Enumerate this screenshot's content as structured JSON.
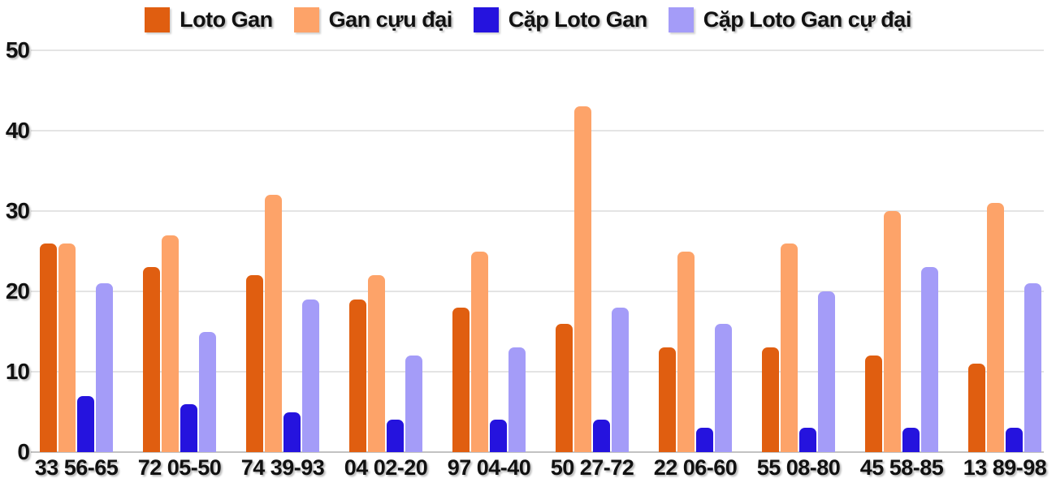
{
  "page": {
    "background": "#ffffff"
  },
  "chart_data": {
    "type": "bar",
    "title": "",
    "xlabel": "",
    "ylabel": "",
    "categories": [
      "33 56-65",
      "72 05-50",
      "74 39-93",
      "04 02-20",
      "97 04-40",
      "50 27-72",
      "22 06-60",
      "55 08-80",
      "45 58-85",
      "13 89-98"
    ],
    "series": [
      {
        "name": "Loto Gan",
        "color": "#E05E10",
        "values": [
          26,
          23,
          22,
          19,
          18,
          16,
          13,
          13,
          12,
          11
        ]
      },
      {
        "name": "Gan cựu đại",
        "color": "#FDA369",
        "values": [
          26,
          27,
          32,
          22,
          25,
          43,
          25,
          26,
          30,
          31
        ]
      },
      {
        "name": "Cặp Loto Gan",
        "color": "#2513DE",
        "values": [
          7,
          6,
          5,
          4,
          4,
          4,
          3,
          3,
          3,
          3
        ]
      },
      {
        "name": "Cặp Loto Gan cự đại",
        "color": "#A49CF8",
        "values": [
          21,
          15,
          19,
          12,
          13,
          18,
          16,
          20,
          23,
          21
        ]
      }
    ],
    "ylim": [
      0,
      50
    ],
    "yticks": [
      0,
      10,
      20,
      30,
      40,
      50
    ],
    "grid": true,
    "legend_position": "top",
    "colors": {
      "gridline": "#E4E4E4",
      "baseline": "#C2C2C2",
      "text": "#111111"
    }
  }
}
